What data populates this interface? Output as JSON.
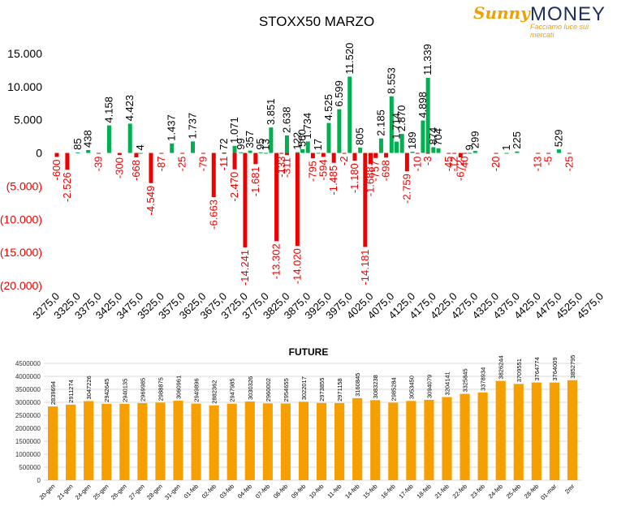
{
  "logo": {
    "brand_part1": "Sunny",
    "brand_part2": "MONEY",
    "tagline": "Facciamo luce sui mercati"
  },
  "colors": {
    "positive": "#00b050",
    "negative": "#ee0000",
    "bar2": "#f5a000",
    "text": "#000000",
    "negLabel": "#ee0000"
  },
  "chart_data": [
    {
      "type": "bar",
      "title": "STOXX50 MARZO",
      "ylim": [
        -20000,
        15000
      ],
      "yticks": [
        15000,
        10000,
        5000,
        0,
        -5000,
        -10000,
        -15000,
        -20000
      ],
      "ytick_labels": [
        "15.000",
        "10.000",
        "5.000",
        "0",
        "(5.000)",
        "(10.000)",
        "(15.000)",
        "(20.000)"
      ],
      "xtick_labels": [
        "3275,0",
        "3325,0",
        "3375,0",
        "3425,0",
        "3475,0",
        "3525,0",
        "3575,0",
        "3625,0",
        "3675,0",
        "3725,0",
        "3775,0",
        "3825,0",
        "3875,0",
        "3925,0",
        "3975,0",
        "4025,0",
        "4075,0",
        "4125,0",
        "4175,0",
        "4225,0",
        "4275,0",
        "4325,0",
        "4375,0",
        "4425,0",
        "4475,0",
        "4525,0",
        "4575,0"
      ],
      "bars": [
        {
          "x": 3275,
          "value": -600,
          "label": "-600"
        },
        {
          "x": 3300,
          "value": -2526,
          "label": "-2.526"
        },
        {
          "x": 3325,
          "value": 85,
          "label": "85"
        },
        {
          "x": 3350,
          "value": 438,
          "label": "438"
        },
        {
          "x": 3375,
          "value": -39,
          "label": "-39"
        },
        {
          "x": 3400,
          "value": 4158,
          "label": "4.158"
        },
        {
          "x": 3425,
          "value": -300,
          "label": "-300"
        },
        {
          "x": 3450,
          "value": 4423,
          "label": "4.423"
        },
        {
          "x": 3465,
          "value": -668,
          "label": "-668"
        },
        {
          "x": 3475,
          "value": 4,
          "label": "4"
        },
        {
          "x": 3500,
          "value": -4549,
          "label": "-4.549"
        },
        {
          "x": 3525,
          "value": -87,
          "label": "-87"
        },
        {
          "x": 3550,
          "value": 1437,
          "label": "1.437"
        },
        {
          "x": 3575,
          "value": -25,
          "label": "-25"
        },
        {
          "x": 3600,
          "value": 1737,
          "label": "1.737"
        },
        {
          "x": 3625,
          "value": -79,
          "label": "-79"
        },
        {
          "x": 3650,
          "value": -6663,
          "label": "-6.663"
        },
        {
          "x": 3675,
          "value": 72,
          "label": "72"
        },
        {
          "x": 3675,
          "value": -11,
          "label": "-11"
        },
        {
          "x": 3700,
          "value": 1071,
          "label": "1.071"
        },
        {
          "x": 3700,
          "value": -2470,
          "label": "-2.470"
        },
        {
          "x": 3715,
          "value": 99,
          "label": "99"
        },
        {
          "x": 3725,
          "value": -14241,
          "label": "-14.241"
        },
        {
          "x": 3737,
          "value": 357,
          "label": "357"
        },
        {
          "x": 3750,
          "value": -1681,
          "label": "-1.681"
        },
        {
          "x": 3762,
          "value": 95,
          "label": "95"
        },
        {
          "x": 3775,
          "value": 13,
          "label": "13"
        },
        {
          "x": 3787,
          "value": 3851,
          "label": "3.851"
        },
        {
          "x": 3800,
          "value": -13302,
          "label": "-13.302"
        },
        {
          "x": 3812,
          "value": -133,
          "label": "-133"
        },
        {
          "x": 3825,
          "value": 2638,
          "label": "2.638"
        },
        {
          "x": 3825,
          "value": -311,
          "label": "-311"
        },
        {
          "x": 3850,
          "value": -14020,
          "label": "-14.020"
        },
        {
          "x": 3850,
          "value": 122,
          "label": "122"
        },
        {
          "x": 3862,
          "value": 560,
          "label": "560"
        },
        {
          "x": 3875,
          "value": 1734,
          "label": "1.734"
        },
        {
          "x": 3887,
          "value": -795,
          "label": "-795"
        },
        {
          "x": 3900,
          "value": 17,
          "label": "17"
        },
        {
          "x": 3912,
          "value": -594,
          "label": "-594"
        },
        {
          "x": 3925,
          "value": 4525,
          "label": "4.525"
        },
        {
          "x": 3937,
          "value": -1485,
          "label": "-1.485"
        },
        {
          "x": 3950,
          "value": 6599,
          "label": "6.599"
        },
        {
          "x": 3962,
          "value": -2,
          "label": "-2"
        },
        {
          "x": 3975,
          "value": 11520,
          "label": "11.520"
        },
        {
          "x": 3987,
          "value": -1180,
          "label": "-1.180"
        },
        {
          "x": 4000,
          "value": 805,
          "label": "805"
        },
        {
          "x": 4012,
          "value": -14181,
          "label": "-14.181"
        },
        {
          "x": 4025,
          "value": -1688,
          "label": "-1.688"
        },
        {
          "x": 4037,
          "value": -757,
          "label": "-757"
        },
        {
          "x": 4050,
          "value": 2185,
          "label": "2.185"
        },
        {
          "x": 4062,
          "value": -698,
          "label": "-698"
        },
        {
          "x": 4075,
          "value": 8553,
          "label": "8.553"
        },
        {
          "x": 4087,
          "value": 1714,
          "label": "1.714"
        },
        {
          "x": 4100,
          "value": 2870,
          "label": "2.870"
        },
        {
          "x": 4112,
          "value": -2759,
          "label": "-2.759"
        },
        {
          "x": 4125,
          "value": 189,
          "label": "189"
        },
        {
          "x": 4137,
          "value": -10,
          "label": "-10"
        },
        {
          "x": 4150,
          "value": 4898,
          "label": "4.898"
        },
        {
          "x": 4162,
          "value": 11339,
          "label": "11.339"
        },
        {
          "x": 4162,
          "value": -3,
          "label": "-3"
        },
        {
          "x": 4175,
          "value": 874,
          "label": "874"
        },
        {
          "x": 4187,
          "value": 704,
          "label": "704"
        },
        {
          "x": 4212,
          "value": -45,
          "label": "-45"
        },
        {
          "x": 4225,
          "value": -12,
          "label": "-12"
        },
        {
          "x": 4240,
          "value": -672,
          "label": "-672"
        },
        {
          "x": 4250,
          "value": -40,
          "label": "-40"
        },
        {
          "x": 4262,
          "value": 9,
          "label": "9"
        },
        {
          "x": 4275,
          "value": 299,
          "label": "299"
        },
        {
          "x": 4325,
          "value": -20,
          "label": "-20"
        },
        {
          "x": 4350,
          "value": 1,
          "label": "1"
        },
        {
          "x": 4375,
          "value": 225,
          "label": "225"
        },
        {
          "x": 4425,
          "value": -13,
          "label": "-13"
        },
        {
          "x": 4450,
          "value": -5,
          "label": "-5"
        },
        {
          "x": 4475,
          "value": 529,
          "label": "529"
        },
        {
          "x": 4500,
          "value": -25,
          "label": "-25"
        }
      ]
    },
    {
      "type": "bar",
      "title": "FUTURE",
      "ylim": [
        0,
        4500000
      ],
      "yticks": [
        0,
        500000,
        1000000,
        1500000,
        2000000,
        2500000,
        3000000,
        3500000,
        4000000,
        4500000
      ],
      "categories": [
        "20-gen",
        "21-gen",
        "24-gen",
        "25-gen",
        "26-gen",
        "27-gen",
        "28-gen",
        "31-gen",
        "01-feb",
        "02-feb",
        "03-feb",
        "04-feb",
        "07-feb",
        "08-feb",
        "09-feb",
        "10-feb",
        "11-feb",
        "14-feb",
        "15-feb",
        "16-feb",
        "17-feb",
        "18-feb",
        "21-feb",
        "22-feb",
        "23-feb",
        "24-feb",
        "25-feb",
        "28-feb",
        "01-mar",
        "2mr"
      ],
      "values": [
        2839694,
        2911274,
        3047226,
        2942645,
        2940135,
        2969985,
        2988875,
        3060961,
        2949896,
        2882362,
        2947985,
        3030326,
        2960002,
        2954655,
        3022017,
        2973855,
        2971158,
        3160845,
        3083238,
        2985284,
        3053450,
        3094079,
        3204141,
        3325845,
        3378934,
        3826244,
        3709551,
        3764774,
        3764009,
        3852795
      ]
    }
  ]
}
